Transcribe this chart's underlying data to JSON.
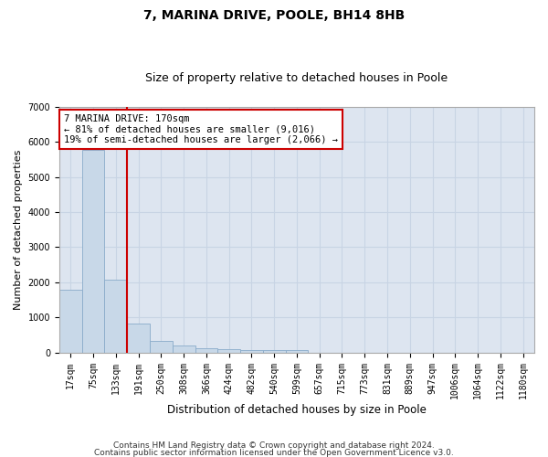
{
  "title": "7, MARINA DRIVE, POOLE, BH14 8HB",
  "subtitle": "Size of property relative to detached houses in Poole",
  "xlabel": "Distribution of detached houses by size in Poole",
  "ylabel": "Number of detached properties",
  "categories": [
    "17sqm",
    "75sqm",
    "133sqm",
    "191sqm",
    "250sqm",
    "308sqm",
    "366sqm",
    "424sqm",
    "482sqm",
    "540sqm",
    "599sqm",
    "657sqm",
    "715sqm",
    "773sqm",
    "831sqm",
    "889sqm",
    "947sqm",
    "1006sqm",
    "1064sqm",
    "1122sqm",
    "1180sqm"
  ],
  "values": [
    1780,
    5780,
    2060,
    820,
    340,
    190,
    110,
    95,
    80,
    70,
    60,
    0,
    0,
    0,
    0,
    0,
    0,
    0,
    0,
    0,
    0
  ],
  "bar_color": "#c8d8e8",
  "bar_edge_color": "#8aabca",
  "red_line_color": "#cc0000",
  "property_label": "7 MARINA DRIVE: 170sqm",
  "annotation_line1": "← 81% of detached houses are smaller (9,016)",
  "annotation_line2": "19% of semi-detached houses are larger (2,066) →",
  "annotation_box_edge_color": "#cc0000",
  "annotation_box_face_color": "#ffffff",
  "ylim": [
    0,
    7000
  ],
  "yticks": [
    0,
    1000,
    2000,
    3000,
    4000,
    5000,
    6000,
    7000
  ],
  "grid_color": "#c8d4e4",
  "background_color": "#dde5f0",
  "title_fontsize": 10,
  "subtitle_fontsize": 9,
  "ylabel_fontsize": 8,
  "xlabel_fontsize": 8.5,
  "tick_fontsize": 7,
  "annotation_fontsize": 7.5,
  "footnote1": "Contains HM Land Registry data © Crown copyright and database right 2024.",
  "footnote2": "Contains public sector information licensed under the Open Government Licence v3.0.",
  "footnote_fontsize": 6.5,
  "red_line_bar_index": 2,
  "bar_width": 1.0
}
